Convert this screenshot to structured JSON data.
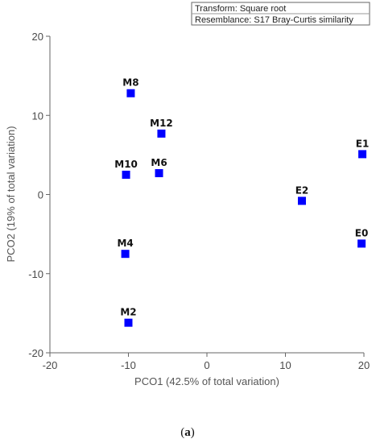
{
  "chart_data": {
    "type": "scatter",
    "xlabel": "PCO1 (42.5% of total variation)",
    "ylabel": "PCO2 (19% of total variation)",
    "xlim": [
      -20,
      20
    ],
    "ylim": [
      -20,
      20
    ],
    "xticks": [
      -20,
      -10,
      0,
      10,
      20
    ],
    "yticks": [
      -20,
      -10,
      0,
      10,
      20
    ],
    "grid": false,
    "points": [
      {
        "label": "M8",
        "x": -9.7,
        "y": 12.8
      },
      {
        "label": "M12",
        "x": -5.8,
        "y": 7.7
      },
      {
        "label": "M10",
        "x": -10.3,
        "y": 2.5
      },
      {
        "label": "M6",
        "x": -6.1,
        "y": 2.7
      },
      {
        "label": "M4",
        "x": -10.4,
        "y": -7.5
      },
      {
        "label": "M2",
        "x": -10.0,
        "y": -16.2
      },
      {
        "label": "E1",
        "x": 19.8,
        "y": 5.1
      },
      {
        "label": "E2",
        "x": 12.1,
        "y": -0.8
      },
      {
        "label": "E0",
        "x": 19.7,
        "y": -6.2
      }
    ],
    "marker_color": "#0000ff",
    "legend": {
      "placement": "top-right",
      "lines": [
        "Transform: Square root",
        "Resemblance: S17 Bray-Curtis similarity"
      ]
    },
    "caption": {
      "open": "(",
      "letter": "a",
      "close": ")"
    }
  }
}
